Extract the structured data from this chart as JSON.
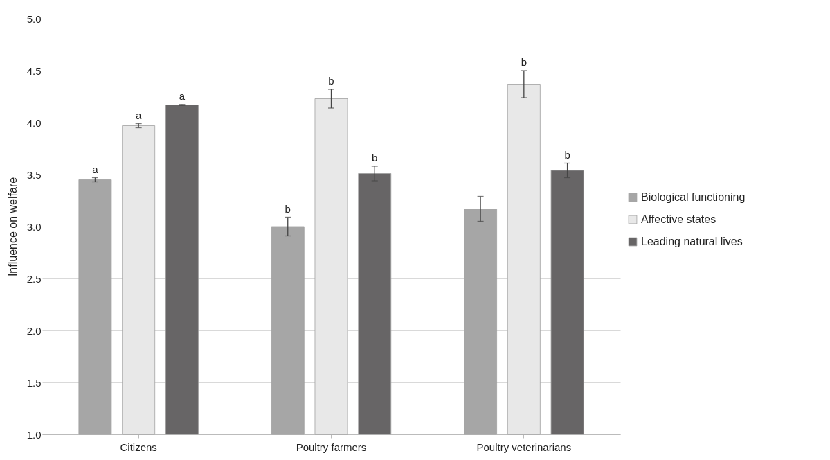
{
  "chart_data": {
    "type": "bar",
    "ylabel": "Influence on welfare",
    "categories": [
      "Citizens",
      "Poultry farmers",
      "Poultry veterinarians"
    ],
    "series": [
      {
        "name": "Biological functioning",
        "color": "#a6a6a6",
        "values": [
          3.45,
          3.0,
          3.17
        ],
        "errors": [
          0.02,
          0.09,
          0.12
        ],
        "value_labels": [
          "a",
          "b",
          null
        ]
      },
      {
        "name": "Affective states",
        "color": "#e8e8e8",
        "values": [
          3.97,
          4.23,
          4.37
        ],
        "errors": [
          0.02,
          0.09,
          0.13
        ],
        "value_labels": [
          "a",
          "b",
          "b"
        ]
      },
      {
        "name": "Leading natural lives",
        "color": "#676566",
        "values": [
          4.17,
          3.51,
          3.54
        ],
        "errors": [
          0.005,
          0.07,
          0.07
        ],
        "value_labels": [
          "a",
          "b",
          "b"
        ]
      }
    ],
    "ylim": [
      1.0,
      5.0
    ],
    "yticks": [
      {
        "value": 1,
        "label": "1.0"
      },
      1.5,
      {
        "value": 2,
        "label": "2.0"
      },
      2.5,
      {
        "value": 3,
        "label": "3.0"
      },
      3.5,
      {
        "value": 4,
        "label": "4.0"
      },
      4.5,
      {
        "value": 5,
        "label": "5.0"
      }
    ],
    "grid": "y",
    "legend": "right"
  }
}
